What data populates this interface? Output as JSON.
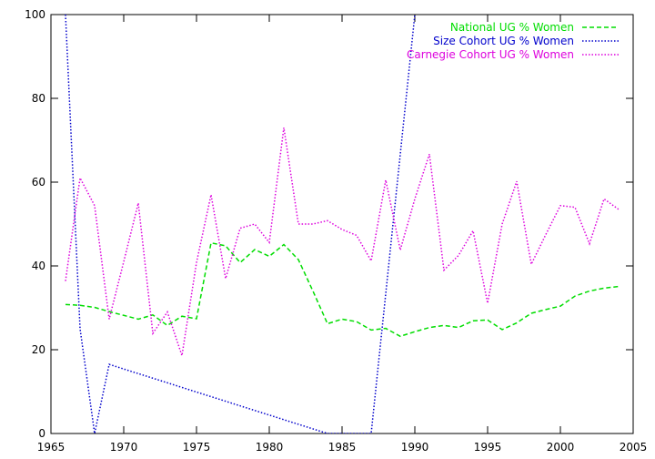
{
  "chart_data": {
    "type": "line",
    "title": "",
    "xlabel": "",
    "ylabel": "",
    "xlim": [
      1965,
      2005
    ],
    "ylim": [
      0,
      100
    ],
    "xticks": [
      1965,
      1970,
      1975,
      1980,
      1985,
      1990,
      1995,
      2000,
      2005
    ],
    "yticks": [
      0,
      20,
      40,
      60,
      80,
      100
    ],
    "grid": false,
    "legend_position": "top-right",
    "series": [
      {
        "name": "National UG % Women",
        "color": "#00dd00",
        "dash": "dashed",
        "x": [
          1966,
          1967,
          1968,
          1969,
          1970,
          1971,
          1972,
          1973,
          1974,
          1975,
          1976,
          1977,
          1978,
          1979,
          1980,
          1981,
          1982,
          1983,
          1984,
          1985,
          1986,
          1987,
          1988,
          1989,
          1990,
          1991,
          1992,
          1993,
          1994,
          1995,
          1996,
          1997,
          1998,
          1999,
          2000,
          2001,
          2002,
          2003,
          2004
        ],
        "y": [
          30.8,
          30.6,
          30.1,
          29.1,
          28.2,
          27.3,
          28.3,
          25.8,
          28.0,
          27.4,
          45.5,
          44.8,
          40.8,
          43.9,
          42.3,
          45.1,
          41.5,
          34.0,
          26.2,
          27.3,
          26.7,
          24.7,
          25.1,
          23.2,
          24.3,
          25.3,
          25.8,
          25.3,
          26.9,
          27.1,
          24.8,
          26.4,
          28.7,
          29.6,
          30.4,
          32.8,
          34.0,
          34.7,
          35.1
        ]
      },
      {
        "name": "Size Cohort UG % Women",
        "color": "#0000cc",
        "dash": "dotted",
        "x": [
          1966,
          1967,
          1968,
          1969,
          1984,
          1987,
          1990
        ],
        "y": [
          100,
          25,
          0,
          16.5,
          0,
          0,
          100
        ]
      },
      {
        "name": "Carnegie Cohort UG % Women",
        "color": "#dd00dd",
        "dash": "dotted",
        "x": [
          1966,
          1967,
          1968,
          1969,
          1970,
          1971,
          1972,
          1973,
          1974,
          1975,
          1976,
          1977,
          1978,
          1979,
          1980,
          1981,
          1982,
          1983,
          1984,
          1985,
          1986,
          1987,
          1988,
          1989,
          1990,
          1991,
          1992,
          1993,
          1994,
          1995,
          1996,
          1997,
          1998,
          1999,
          2000,
          2001,
          2002,
          2003,
          2004
        ],
        "y": [
          36.4,
          61.0,
          54.4,
          27.3,
          41.0,
          55.0,
          23.9,
          29.0,
          18.6,
          40.8,
          57.0,
          37.0,
          49.0,
          50.0,
          45.6,
          73.0,
          50.0,
          50.0,
          50.8,
          48.7,
          47.3,
          41.2,
          60.5,
          43.8,
          56.0,
          66.7,
          39.0,
          42.5,
          48.4,
          31.1,
          50.0,
          60.2,
          40.4,
          47.5,
          54.4,
          54.0,
          45.3,
          56.0,
          53.5
        ]
      }
    ]
  }
}
